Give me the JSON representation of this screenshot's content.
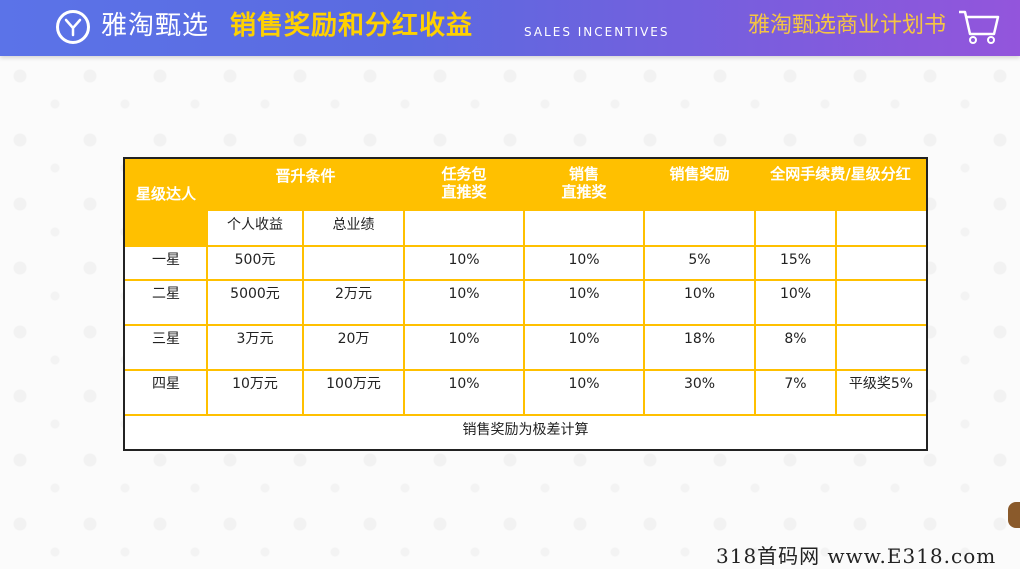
{
  "header": {
    "brand": "雅淘甄选",
    "title": "销售奖励和分红收益",
    "subtitle_en": "SALES INCENTIVES",
    "right_title": "雅淘甄选商业计划书"
  },
  "table": {
    "headers": {
      "level": "星级达人",
      "promotion": "晋升条件",
      "personal_income": "个人收益",
      "total_performance": "总业绩",
      "task_package": "任务包\n直推奖",
      "sales_direct": "销售\n直推奖",
      "sales_reward": "销售奖励",
      "network_fee": "全网手续费/星级分红"
    },
    "rows": [
      {
        "level": "一星",
        "income": "500元",
        "total": "",
        "task": "10%",
        "direct": "10%",
        "reward": "5%",
        "fee": "15%",
        "extra": ""
      },
      {
        "level": "二星",
        "income": "5000元",
        "total": "2万元",
        "task": "10%",
        "direct": "10%",
        "reward": "10%",
        "fee": "10%",
        "extra": ""
      },
      {
        "level": "三星",
        "income": "3万元",
        "total": "20万",
        "task": "10%",
        "direct": "10%",
        "reward": "18%",
        "fee": "8%",
        "extra": ""
      },
      {
        "level": "四星",
        "income": "10万元",
        "total": "100万元",
        "task": "10%",
        "direct": "10%",
        "reward": "30%",
        "fee": "7%",
        "extra": "平级奖5%"
      }
    ],
    "footer": "销售奖励为极差计算"
  },
  "watermark": "318首码网 www.E318.com",
  "colors": {
    "header_gradient_start": "#5b73e8",
    "header_gradient_end": "#9355dc",
    "title_yellow": "#ffd100",
    "table_yellow": "#ffc000"
  },
  "icons": [
    "logo-icon",
    "shopping-cart-icon"
  ]
}
